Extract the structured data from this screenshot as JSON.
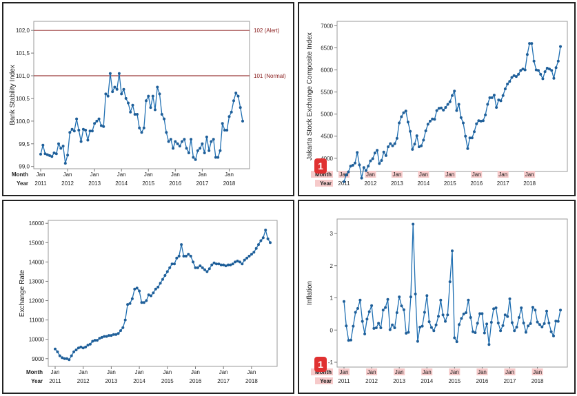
{
  "charts": [
    {
      "type": "line",
      "ylabel": "Bank Stability Index",
      "ylim": [
        98.95,
        102.2
      ],
      "yticks": [
        99.0,
        99.5,
        100.0,
        100.5,
        101.0,
        101.5,
        102.0
      ],
      "ytick_labels": [
        "99,0",
        "99,5",
        "100,0",
        "100,5",
        "101,0",
        "101,5",
        "102,0"
      ],
      "reference_lines": [
        {
          "value": 102.0,
          "label": "102 (Alert)"
        },
        {
          "value": 101.0,
          "label": "101 (Normal)"
        }
      ],
      "axis_rows": {
        "month_label": "Month",
        "year_label": "Year"
      },
      "x_month_labels": [
        "Jan",
        "Jan",
        "Jan",
        "Jan",
        "Jan",
        "Jan",
        "Jan",
        "Jan"
      ],
      "x_year_labels": [
        "2011",
        "2012",
        "2013",
        "2014",
        "2015",
        "2016",
        "2017",
        "2018"
      ],
      "series": [
        {
          "values": [
            99.27,
            99.47,
            99.28,
            99.26,
            99.24,
            99.22,
            99.3,
            99.28,
            99.5,
            99.4,
            99.45,
            99.07,
            99.25,
            99.75,
            99.82,
            99.78,
            100.05,
            99.8,
            99.55,
            99.82,
            99.8,
            99.58,
            99.78,
            99.78,
            99.95,
            100.0,
            100.05,
            99.9,
            99.88,
            100.6,
            100.55,
            101.05,
            100.65,
            100.75,
            100.7,
            101.05,
            100.6,
            100.7,
            100.5,
            100.4,
            100.2,
            100.35,
            100.15,
            100.15,
            99.85,
            99.75,
            99.85,
            100.45,
            100.55,
            100.3,
            100.55,
            100.25,
            100.75,
            100.6,
            100.15,
            100.05,
            99.75,
            99.55,
            99.6,
            99.4,
            99.55,
            99.5,
            99.45,
            99.55,
            99.6,
            99.4,
            99.3,
            99.6,
            99.2,
            99.15,
            99.35,
            99.4,
            99.5,
            99.3,
            99.65,
            99.35,
            99.55,
            99.6,
            99.2,
            99.2,
            99.35,
            99.95,
            99.8,
            99.8,
            100.1,
            100.2,
            100.45,
            100.62,
            100.55,
            100.3,
            100.0
          ]
        }
      ]
    },
    {
      "type": "line",
      "ylabel": "Jakarta Stock Exchange Composite Index",
      "ylim": [
        3700,
        7100
      ],
      "yticks": [
        4000,
        4500,
        5000,
        5500,
        6000,
        6500,
        7000
      ],
      "ytick_labels": [
        "4000",
        "4500",
        "5000",
        "5500",
        "6000",
        "6500",
        "7000"
      ],
      "axis_rows": {
        "month_label": "Month",
        "year_label": "Year"
      },
      "x_month_labels": [
        "Jan",
        "Jan",
        "Jan",
        "Jan",
        "Jan",
        "Jan",
        "Jan",
        "Jan"
      ],
      "x_year_labels": [
        "2011",
        "2012",
        "2013",
        "2014",
        "2015",
        "2016",
        "2017",
        "2018"
      ],
      "series": [
        {
          "values": [
            3470,
            3620,
            3690,
            3820,
            3840,
            3890,
            4130,
            3850,
            3550,
            3790,
            3720,
            3820,
            3940,
            3990,
            4120,
            4180,
            3880,
            3950,
            4140,
            4060,
            4260,
            4330,
            4280,
            4330,
            4450,
            4800,
            4940,
            5030,
            5070,
            4820,
            4610,
            4200,
            4320,
            4510,
            4260,
            4280,
            4410,
            4620,
            4770,
            4840,
            4890,
            4880,
            5080,
            5130,
            5140,
            5090,
            5150,
            5220,
            5280,
            5420,
            5520,
            5080,
            5220,
            4920,
            4800,
            4500,
            4220,
            4460,
            4460,
            4600,
            4780,
            4850,
            4840,
            4850,
            4980,
            5220,
            5370,
            5370,
            5430,
            5150,
            5320,
            5300,
            5420,
            5570,
            5680,
            5740,
            5830,
            5870,
            5850,
            5900,
            5990,
            6020,
            6000,
            6350,
            6600,
            6600,
            6200,
            6000,
            5990,
            5900,
            5800,
            5960,
            6040,
            6020,
            5990,
            5810,
            6050,
            6200,
            6530
          ]
        }
      ]
    },
    {
      "type": "line",
      "ylabel": "Exchange Rate",
      "ylim": [
        8600,
        16150
      ],
      "yticks": [
        9000,
        10000,
        11000,
        12000,
        13000,
        14000,
        15000,
        16000
      ],
      "ytick_labels": [
        "9000",
        "10000",
        "11000",
        "12000",
        "13000",
        "14000",
        "15000",
        "16000"
      ],
      "axis_rows": {
        "month_label": "Month",
        "year_label": "Year"
      },
      "x_month_labels": [
        "Jan",
        "Jan",
        "Jan",
        "Jan",
        "Jan",
        "Jan",
        "Jan",
        "Jan"
      ],
      "x_year_labels": [
        "2011",
        "2012",
        "2013",
        "2014",
        "2015",
        "2016",
        "2017",
        "2018"
      ],
      "series": [
        {
          "values": [
            9500,
            9350,
            9150,
            9050,
            9000,
            9000,
            8950,
            9150,
            9350,
            9450,
            9550,
            9600,
            9550,
            9600,
            9700,
            9750,
            9900,
            9950,
            9950,
            10050,
            10100,
            10150,
            10150,
            10200,
            10200,
            10250,
            10250,
            10300,
            10450,
            10600,
            11000,
            11800,
            11850,
            12100,
            12600,
            12650,
            12500,
            11900,
            11900,
            12000,
            12300,
            12250,
            12400,
            12600,
            12700,
            12900,
            13100,
            13300,
            13500,
            13700,
            13900,
            13900,
            14200,
            14300,
            14900,
            14300,
            14300,
            14400,
            14300,
            14000,
            13700,
            13700,
            13800,
            13700,
            13600,
            13500,
            13650,
            13850,
            13950,
            13900,
            13900,
            13850,
            13850,
            13800,
            13850,
            13850,
            13900,
            14000,
            14050,
            14000,
            13900,
            14100,
            14200,
            14300,
            14400,
            14500,
            14700,
            14900,
            15100,
            15250,
            15650,
            15200,
            15000
          ]
        }
      ]
    },
    {
      "type": "line",
      "ylabel": "Inflation",
      "ylim": [
        -1.15,
        3.45
      ],
      "yticks": [
        -1,
        0,
        1,
        2,
        3
      ],
      "ytick_labels": [
        "-1",
        "0",
        "1",
        "2",
        "3"
      ],
      "axis_rows": {
        "month_label": "Month",
        "year_label": "Year"
      },
      "x_month_labels": [
        "Jan",
        "Jan",
        "Jan",
        "Jan",
        "Jan",
        "Jan",
        "Jan",
        "Jan"
      ],
      "x_year_labels": [
        "2011",
        "2012",
        "2013",
        "2014",
        "2015",
        "2016",
        "2017",
        "2018"
      ],
      "series": [
        {
          "values": [
            0.89,
            0.13,
            -0.32,
            -0.31,
            0.12,
            0.55,
            0.67,
            0.93,
            0.27,
            -0.12,
            0.34,
            0.57,
            0.76,
            0.05,
            0.07,
            0.21,
            0.07,
            0.62,
            0.7,
            0.95,
            0.01,
            0.16,
            0.07,
            0.54,
            1.03,
            0.75,
            0.63,
            -0.1,
            -0.07,
            1.03,
            3.29,
            1.12,
            -0.35,
            0.09,
            0.12,
            0.55,
            1.07,
            0.26,
            0.08,
            -0.02,
            0.16,
            0.43,
            0.93,
            0.47,
            0.27,
            0.47,
            1.5,
            2.46,
            -0.24,
            -0.36,
            0.17,
            0.36,
            0.5,
            0.54,
            0.93,
            0.39,
            -0.05,
            -0.08,
            0.21,
            0.51,
            0.51,
            -0.09,
            0.19,
            -0.45,
            0.24,
            0.66,
            0.69,
            0.22,
            -0.02,
            0.14,
            0.47,
            0.42,
            0.97,
            0.23,
            -0.02,
            0.09,
            0.39,
            0.69,
            0.22,
            -0.07,
            0.13,
            0.2,
            0.71,
            0.62,
            0.25,
            0.17,
            0.1,
            0.2,
            0.59,
            0.22,
            -0.05,
            -0.18,
            0.28,
            0.27,
            0.62
          ]
        }
      ]
    }
  ],
  "badges": [
    "1",
    "1"
  ]
}
